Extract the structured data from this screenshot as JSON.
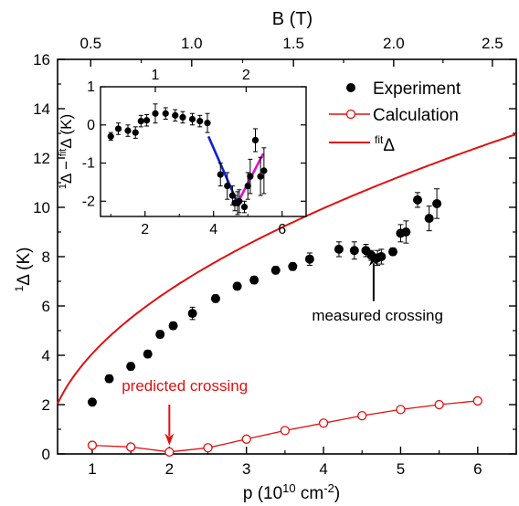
{
  "chart_data": [
    {
      "type": "scatter",
      "panel": "main",
      "xlabel": "p (10^10 cm^-2)",
      "xlabel_parts": {
        "main": "p (10",
        "exp1": "10",
        "mid": " cm",
        "exp2": "-2",
        "end": ")"
      },
      "ylabel": "¹Δ (K)",
      "ylabel_parts": {
        "sup": "1",
        "main": "Δ (K)"
      },
      "top_axis_label": "B (T)",
      "xlim": [
        0.55,
        6.5
      ],
      "ylim": [
        0,
        16
      ],
      "x_ticks": [
        1,
        2,
        3,
        4,
        5,
        6
      ],
      "y_ticks": [
        0,
        2,
        4,
        6,
        8,
        10,
        12,
        14,
        16
      ],
      "top_ticks": [
        {
          "label": "0.5",
          "p": 0.91
        },
        {
          "label": "1.0",
          "p": 1.82
        },
        {
          "label": "1.5",
          "p": 2.73
        },
        {
          "label": "2.0",
          "p": 3.64
        },
        {
          "label": "2.5",
          "p": 4.55
        }
      ],
      "top_ticks_override": [
        {
          "label": "0.5",
          "p": 0.98
        },
        {
          "label": "1.0",
          "p": 2.29
        },
        {
          "label": "1.5",
          "p": 3.61
        },
        {
          "label": "2.0",
          "p": 4.91
        },
        {
          "label": "2.5",
          "p": 6.19
        }
      ],
      "grid": false,
      "legend_position": "top-right",
      "legend": [
        {
          "label": "Experiment",
          "style": "filled-circle"
        },
        {
          "label": "Calculation",
          "style": "open-circle-line"
        },
        {
          "label": "Δ",
          "label_sup": "fit",
          "style": "line"
        }
      ],
      "experiment": {
        "x": [
          1.0,
          1.22,
          1.5,
          1.72,
          1.88,
          2.05,
          2.3,
          2.6,
          2.88,
          3.1,
          3.38,
          3.6,
          3.82,
          4.2,
          4.4,
          4.55,
          4.62,
          4.7,
          4.75,
          4.9,
          5.0,
          5.07,
          5.22,
          5.37,
          5.47
        ],
        "y": [
          2.1,
          3.05,
          3.55,
          4.05,
          4.85,
          5.2,
          5.7,
          6.3,
          6.8,
          7.05,
          7.45,
          7.6,
          7.9,
          8.3,
          8.25,
          8.25,
          8.05,
          7.95,
          8.0,
          8.2,
          8.95,
          9.0,
          10.3,
          9.55,
          10.15
        ],
        "err": [
          0.1,
          0.15,
          0.15,
          0.15,
          0.15,
          0.15,
          0.25,
          0.15,
          0.15,
          0.15,
          0.15,
          0.15,
          0.25,
          0.3,
          0.35,
          0.25,
          0.2,
          0.3,
          0.3,
          0.15,
          0.35,
          0.45,
          0.3,
          0.5,
          0.6
        ]
      },
      "calculation": {
        "x": [
          1.0,
          1.5,
          2.0,
          2.5,
          3.0,
          3.5,
          4.0,
          4.5,
          5.0,
          5.5,
          6.0
        ],
        "y": [
          0.35,
          0.28,
          0.08,
          0.25,
          0.6,
          0.95,
          1.25,
          1.55,
          1.8,
          2.0,
          2.15
        ]
      },
      "fit_curve": {
        "a": 2.5,
        "x0": 0.4,
        "power": 0.5
      },
      "annotations": [
        {
          "text": "predicted crossing",
          "color": "#e01010",
          "arrow_x": 2.0,
          "arrow_y_from": 2.0,
          "arrow_y_to": 0.35,
          "text_x": 2.2,
          "text_y": 2.55
        },
        {
          "text": "measured crossing",
          "color": "#000000",
          "arrow_x": 4.65,
          "arrow_y_from": 6.2,
          "arrow_y_to": 8.1,
          "text_x": 4.7,
          "text_y": 5.4
        }
      ]
    },
    {
      "type": "scatter",
      "panel": "inset",
      "ylabel": "¹Δ − fitΔ (K)",
      "ylabel_parts": {
        "sup1": "1",
        "delta": "Δ",
        "minus": " − ",
        "sup2": "fit",
        "end": "Δ (K)"
      },
      "xlim": [
        0.7,
        6.7
      ],
      "ylim": [
        -2.4,
        1
      ],
      "x_ticks": [
        2,
        4,
        6
      ],
      "y_ticks": [
        1,
        0,
        -1,
        -2
      ],
      "top_ticks": [
        {
          "label": "1",
          "p": 2.3
        },
        {
          "label": "2",
          "p": 4.95
        }
      ],
      "points": {
        "x": [
          1.0,
          1.22,
          1.5,
          1.72,
          1.88,
          2.05,
          2.3,
          2.6,
          2.88,
          3.1,
          3.38,
          3.6,
          3.82,
          4.2,
          4.4,
          4.55,
          4.62,
          4.7,
          4.75,
          4.9,
          5.0,
          5.07,
          5.22,
          5.37,
          5.47
        ],
        "y": [
          -0.3,
          -0.1,
          -0.15,
          -0.2,
          0.1,
          0.12,
          0.3,
          0.3,
          0.25,
          0.2,
          0.15,
          0.1,
          0.05,
          -1.3,
          -1.6,
          -1.85,
          -2.05,
          -2.05,
          -2.0,
          -2.15,
          -1.6,
          -1.35,
          -0.4,
          -1.35,
          -1.2
        ],
        "err": [
          0.1,
          0.15,
          0.15,
          0.15,
          0.15,
          0.15,
          0.25,
          0.15,
          0.15,
          0.15,
          0.15,
          0.15,
          0.25,
          0.3,
          0.35,
          0.25,
          0.2,
          0.3,
          0.3,
          0.15,
          0.35,
          0.45,
          0.3,
          0.5,
          0.6
        ]
      },
      "lines": [
        {
          "color": "#1020d0",
          "x": [
            3.85,
            4.7
          ],
          "y": [
            -0.3,
            -2.05
          ]
        },
        {
          "color": "#e010d0",
          "x": [
            4.7,
            5.45
          ],
          "y": [
            -2.05,
            -0.75
          ]
        }
      ]
    }
  ],
  "colors": {
    "red": "#e01010",
    "black": "#000000",
    "blue": "#1020d0",
    "magenta": "#e010d0"
  }
}
